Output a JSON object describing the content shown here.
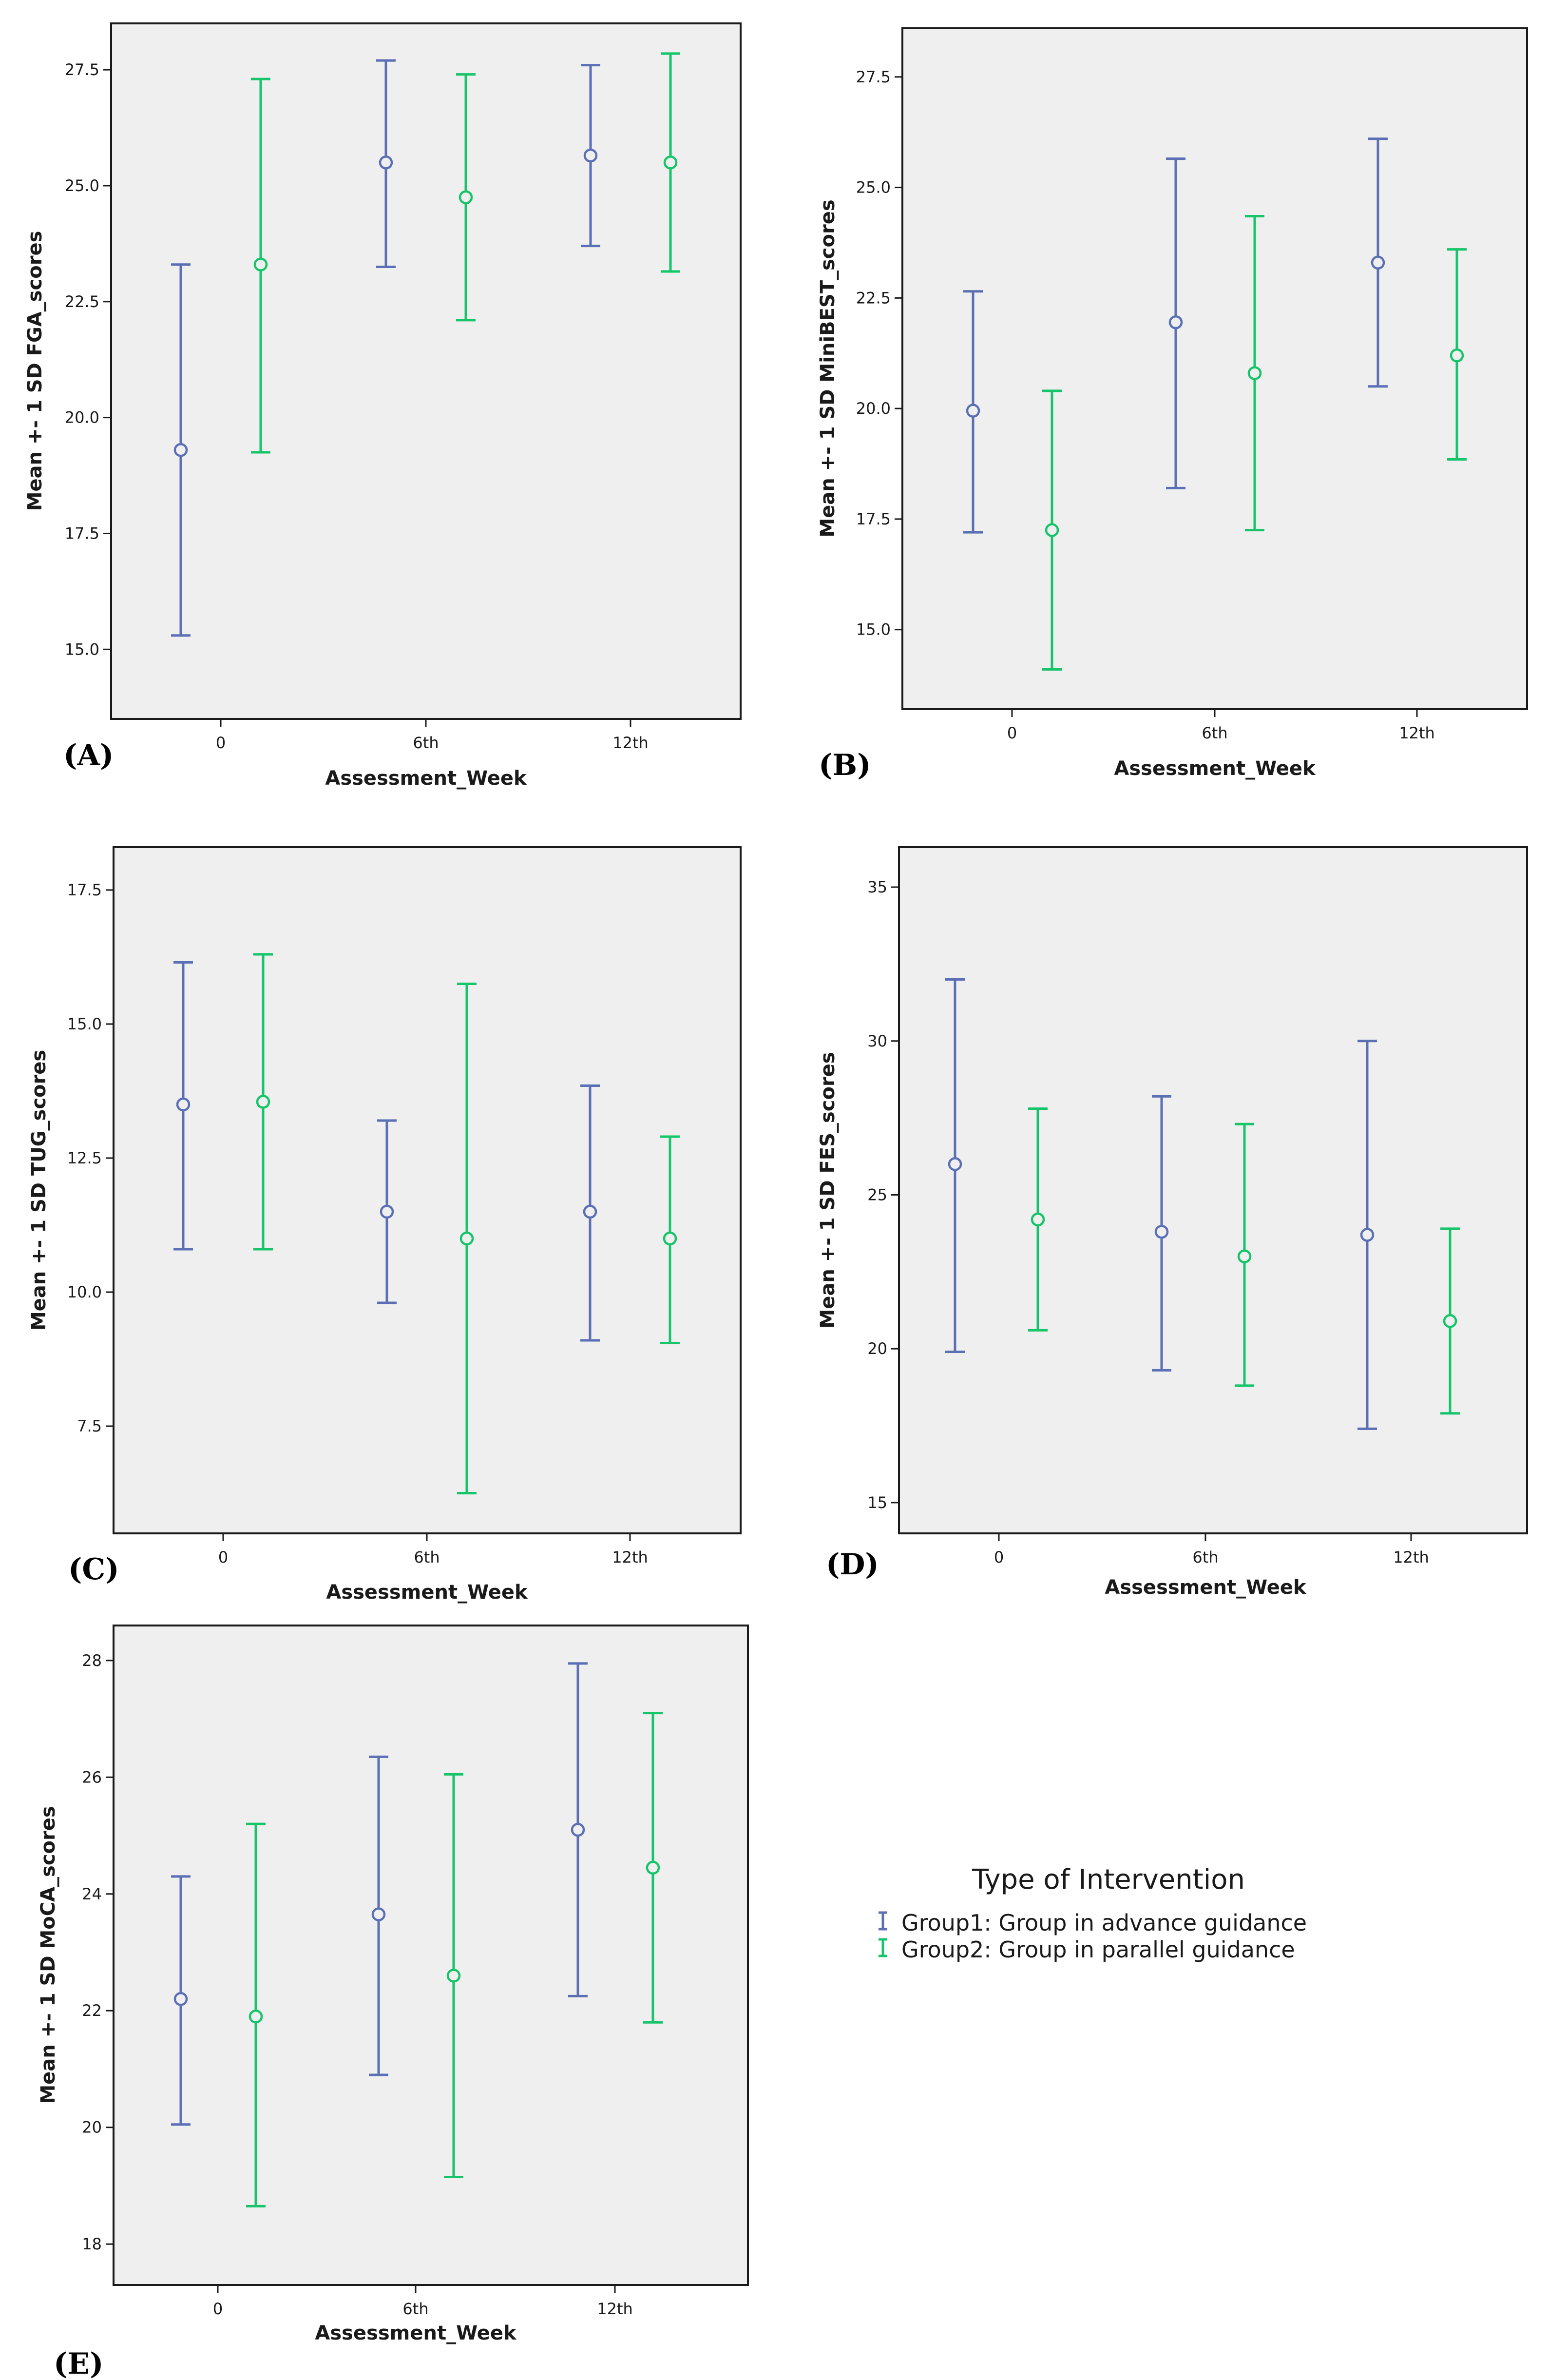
{
  "chart_data": [
    {
      "panel": "(A)",
      "type": "errorbar",
      "ylabel": "Mean +- 1 SD FGA_scores",
      "xlabel": "Assessment_Week",
      "categories": [
        "0",
        "6th",
        "12th"
      ],
      "ylim": [
        13.5,
        28.5
      ],
      "yticks": [
        15.0,
        17.5,
        20.0,
        22.5,
        25.0,
        27.5
      ],
      "ytick_labels": [
        "15.0",
        "17.5",
        "20.0",
        "22.5",
        "25.0",
        "27.5"
      ],
      "series": [
        {
          "name": "Group1: Group in advance guidance",
          "color": "#5b6fb5",
          "mean": [
            19.3,
            25.5,
            25.65
          ],
          "lower": [
            15.3,
            23.25,
            23.7
          ],
          "upper": [
            23.3,
            27.7,
            27.6
          ]
        },
        {
          "name": "Group2: Group in parallel guidance",
          "color": "#16c46a",
          "mean": [
            23.3,
            24.75,
            25.5
          ],
          "lower": [
            19.25,
            22.1,
            23.15
          ],
          "upper": [
            27.3,
            27.4,
            27.85
          ]
        }
      ]
    },
    {
      "panel": "(B)",
      "type": "errorbar",
      "ylabel": "Mean +- 1 SD MiniBEST_scores",
      "xlabel": "Assessment_Week",
      "categories": [
        "0",
        "6th",
        "12th"
      ],
      "ylim": [
        13.2,
        28.6
      ],
      "yticks": [
        15.0,
        17.5,
        20.0,
        22.5,
        25.0,
        27.5
      ],
      "ytick_labels": [
        "15.0",
        "17.5",
        "20.0",
        "22.5",
        "25.0",
        "27.5"
      ],
      "series": [
        {
          "name": "Group1: Group in advance guidance",
          "color": "#5b6fb5",
          "mean": [
            19.95,
            21.95,
            23.3
          ],
          "lower": [
            17.2,
            18.2,
            20.5
          ],
          "upper": [
            22.65,
            25.65,
            26.1
          ]
        },
        {
          "name": "Group2: Group in parallel guidance",
          "color": "#16c46a",
          "mean": [
            17.25,
            20.8,
            21.2
          ],
          "lower": [
            14.1,
            17.25,
            18.85
          ],
          "upper": [
            20.4,
            24.35,
            23.6
          ]
        }
      ]
    },
    {
      "panel": "(C)",
      "type": "errorbar",
      "ylabel": "Mean +- 1 SD TUG_scores",
      "xlabel": "Assessment_Week",
      "categories": [
        "0",
        "6th",
        "12th"
      ],
      "ylim": [
        5.5,
        18.3
      ],
      "yticks": [
        7.5,
        10.0,
        12.5,
        15.0,
        17.5
      ],
      "ytick_labels": [
        "7.5",
        "10.0",
        "12.5",
        "15.0",
        "17.5"
      ],
      "series": [
        {
          "name": "Group1: Group in advance guidance",
          "color": "#5b6fb5",
          "mean": [
            13.5,
            11.5,
            11.5
          ],
          "lower": [
            10.8,
            9.8,
            9.1
          ],
          "upper": [
            16.15,
            13.2,
            13.85
          ]
        },
        {
          "name": "Group2: Group in parallel guidance",
          "color": "#16c46a",
          "mean": [
            13.55,
            11.0,
            11.0
          ],
          "lower": [
            10.8,
            6.25,
            9.05
          ],
          "upper": [
            16.3,
            15.75,
            12.9
          ]
        }
      ]
    },
    {
      "panel": "(D)",
      "type": "errorbar",
      "ylabel": "Mean +- 1 SD FES_scores",
      "xlabel": "Assessment_Week",
      "categories": [
        "0",
        "6th",
        "12th"
      ],
      "ylim": [
        14.0,
        36.3
      ],
      "yticks": [
        15,
        20,
        25,
        30,
        35
      ],
      "ytick_labels": [
        "15",
        "20",
        "25",
        "30",
        "35"
      ],
      "series": [
        {
          "name": "Group1: Group in advance guidance",
          "color": "#5b6fb5",
          "mean": [
            26.0,
            23.8,
            23.7
          ],
          "lower": [
            19.9,
            19.3,
            17.4
          ],
          "upper": [
            32.0,
            28.2,
            30.0
          ]
        },
        {
          "name": "Group2: Group in parallel guidance",
          "color": "#16c46a",
          "mean": [
            24.2,
            23.0,
            20.9
          ],
          "lower": [
            20.6,
            18.8,
            17.9
          ],
          "upper": [
            27.8,
            27.3,
            23.9
          ]
        }
      ]
    },
    {
      "panel": "(E)",
      "type": "errorbar",
      "ylabel": "Mean +- 1 SD MoCA_scores",
      "xlabel": "Assessment_Week",
      "categories": [
        "0",
        "6th",
        "12th"
      ],
      "ylim": [
        17.3,
        28.6
      ],
      "yticks": [
        18,
        20,
        22,
        24,
        26,
        28
      ],
      "ytick_labels": [
        "18",
        "20",
        "22",
        "24",
        "26",
        "28"
      ],
      "series": [
        {
          "name": "Group1: Group in advance guidance",
          "color": "#5b6fb5",
          "mean": [
            22.2,
            23.65,
            25.1
          ],
          "lower": [
            20.05,
            20.9,
            22.25
          ],
          "upper": [
            24.3,
            26.35,
            27.95
          ]
        },
        {
          "name": "Group2: Group in parallel guidance",
          "color": "#16c46a",
          "mean": [
            21.9,
            22.6,
            24.45
          ],
          "lower": [
            18.65,
            19.15,
            21.8
          ],
          "upper": [
            25.2,
            26.05,
            27.1
          ]
        }
      ]
    }
  ],
  "legend": {
    "title": "Type of Intervention",
    "items": [
      {
        "label": "Group1: Group in advance guidance",
        "color": "#5b6fb5"
      },
      {
        "label": "Group2: Group in parallel guidance",
        "color": "#16c46a"
      }
    ]
  }
}
